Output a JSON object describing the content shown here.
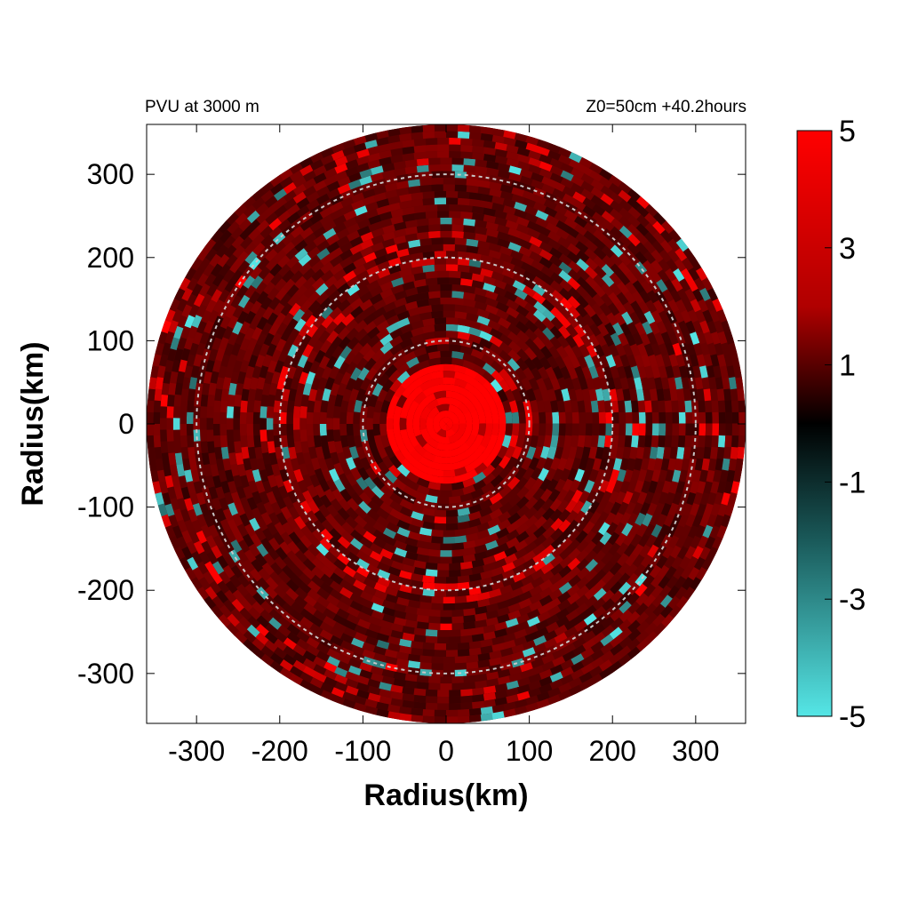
{
  "chart_data": {
    "type": "heatmap",
    "title_left": "PVU at  3000 m",
    "title_right": "Z0=50cm  +40.2hours",
    "xlabel": "Radius(km)",
    "ylabel": "Radius(km)",
    "xlim": [
      -360,
      360
    ],
    "ylim": [
      -360,
      360
    ],
    "x_ticks": [
      -300,
      -200,
      -100,
      0,
      100,
      200,
      300
    ],
    "y_ticks": [
      300,
      200,
      100,
      0,
      -100,
      -200,
      -300
    ],
    "domain_radius_km": 360,
    "reference_circles_km": [
      100,
      200,
      300
    ],
    "colorbar": {
      "min": -5,
      "max": 5,
      "ticks": [
        5,
        3,
        1,
        -1,
        -3,
        -5
      ],
      "colors": {
        "max": "#ff0000",
        "zero": "#000000",
        "min": "#55e6e6"
      }
    },
    "field_summary": {
      "core_radius_km": 70,
      "core_value": 5,
      "background_value": 1.3
    }
  }
}
